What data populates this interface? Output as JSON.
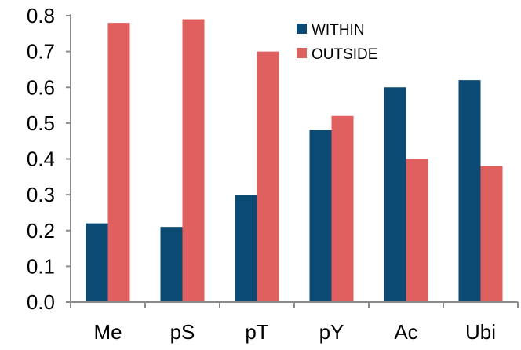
{
  "chart_data": {
    "type": "bar",
    "title": "",
    "xlabel": "",
    "ylabel": "",
    "categories": [
      "Me",
      "pS",
      "pT",
      "pY",
      "Ac",
      "Ubi"
    ],
    "series": [
      {
        "name": "WITHIN",
        "values": [
          0.22,
          0.21,
          0.3,
          0.48,
          0.6,
          0.62
        ],
        "color": "#0b4a72"
      },
      {
        "name": "OUTSIDE",
        "values": [
          0.78,
          0.79,
          0.7,
          0.52,
          0.4,
          0.38
        ],
        "color": "#e05f5f"
      }
    ],
    "ylim": [
      0.0,
      0.8
    ],
    "yticks": [
      "0.0",
      "0.1",
      "0.2",
      "0.3",
      "0.4",
      "0.5",
      "0.6",
      "0.7",
      "0.8"
    ],
    "grid": false,
    "legend_position": "top-right",
    "axis_color": "#8a8a8a"
  }
}
